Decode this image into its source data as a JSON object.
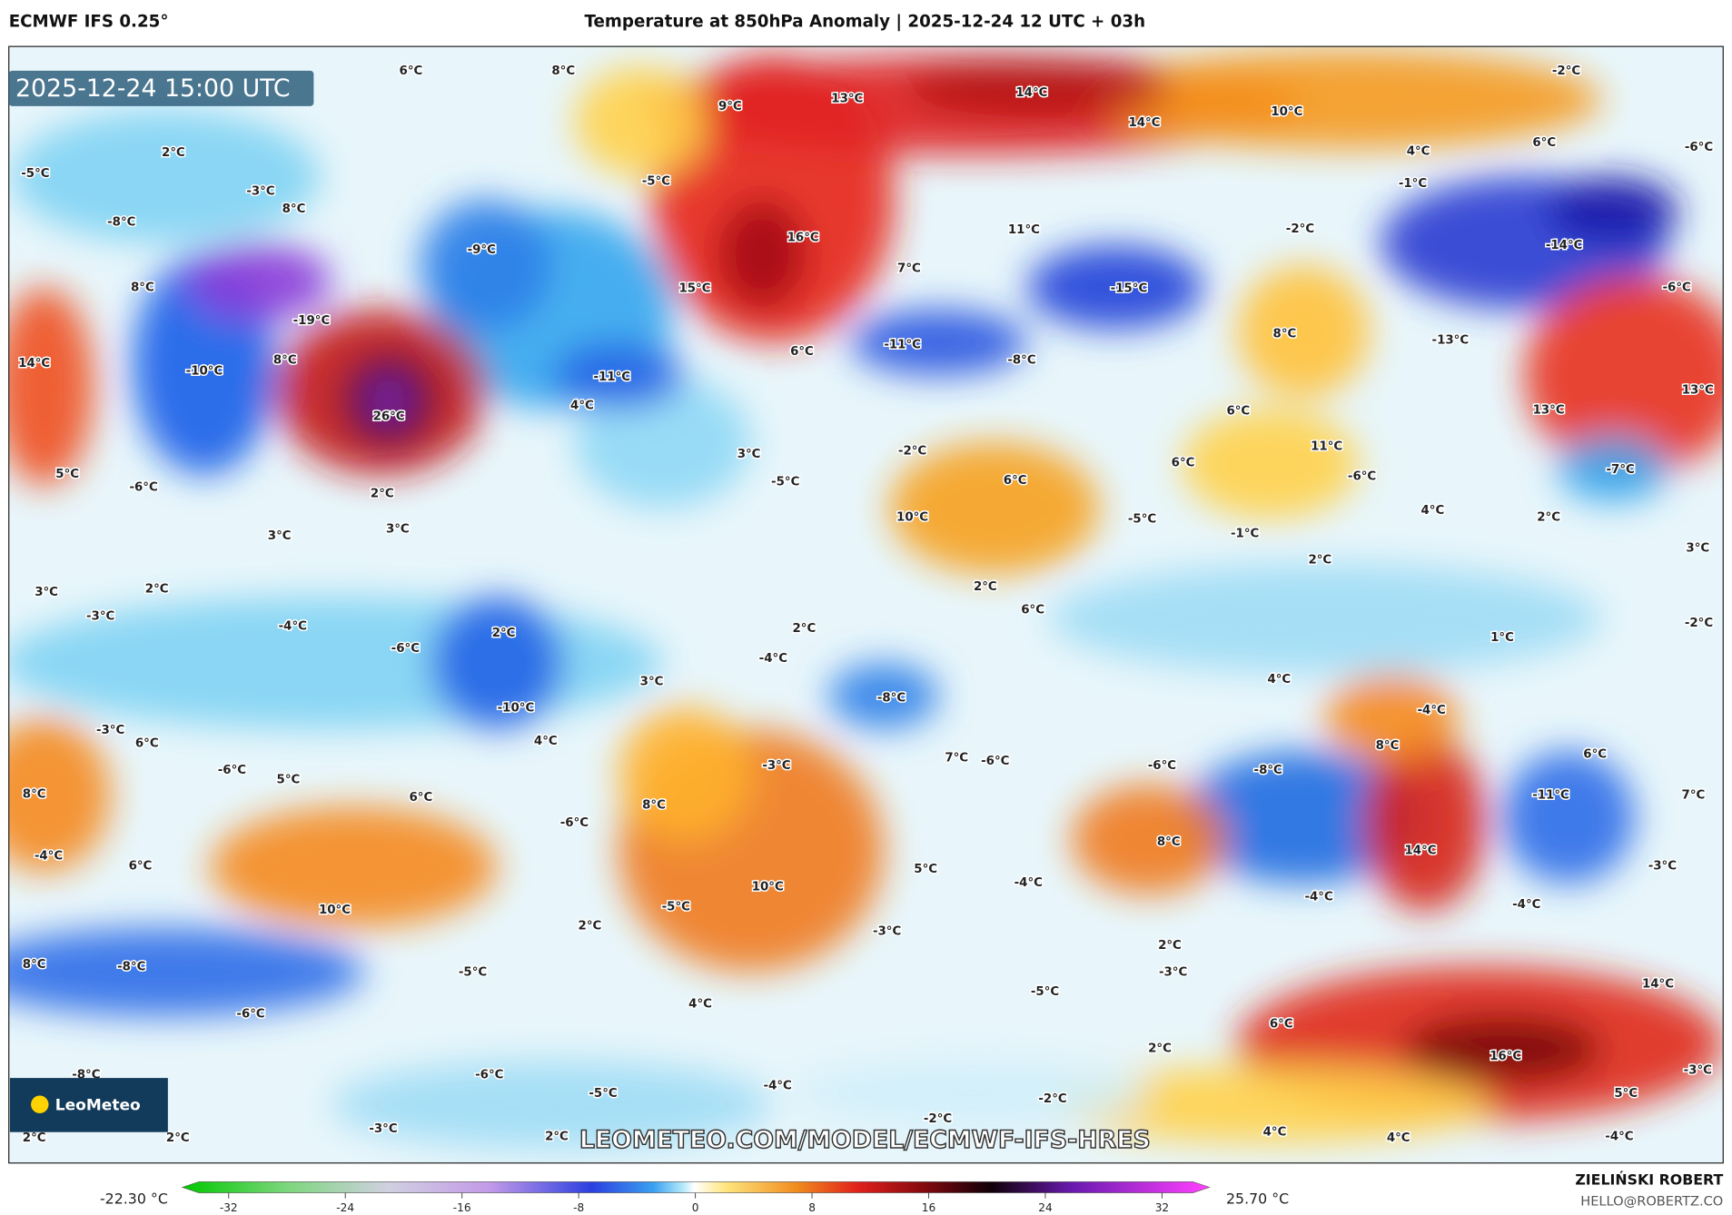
{
  "header": {
    "model": "ECMWF IFS 0.25°",
    "title": "Temperature at 850hPa Anomaly | 2025-12-24 12 UTC + 03h"
  },
  "map": {
    "timestamp": "2025-12-24 15:00 UTC",
    "logo": "LeoMeteo",
    "watermark": "LEOMETEO.COM/MODEL/ECMWF-IFS-HRES",
    "labels": [
      "6°C",
      "8°C",
      "-2°C",
      "9°C",
      "13°C",
      "14°C",
      "10°C",
      "14°C",
      "2°C",
      "-5°C",
      "-5°C",
      "4°C",
      "6°C",
      "-6°C",
      "-1°C",
      "-3°C",
      "8°C",
      "-8°C",
      "-2°C",
      "16°C",
      "11°C",
      "-9°C",
      "-14°C",
      "7°C",
      "15°C",
      "-15°C",
      "8°C",
      "-6°C",
      "-19°C",
      "8°C",
      "-13°C",
      "8°C",
      "14°C",
      "-10°C",
      "6°C",
      "-11°C",
      "-8°C",
      "-11°C",
      "13°C",
      "26°C",
      "4°C",
      "6°C",
      "13°C",
      "11°C",
      "3°C",
      "-2°C",
      "6°C",
      "-7°C",
      "5°C",
      "-6°C",
      "-5°C",
      "6°C",
      "-6°C",
      "2°C",
      "-5°C",
      "4°C",
      "2°C",
      "10°C",
      "3°C",
      "3°C",
      "-1°C",
      "3°C",
      "2°C",
      "3°C",
      "2°C",
      "2°C",
      "-3°C",
      "6°C",
      "-4°C",
      "2°C",
      "2°C",
      "-2°C",
      "-6°C",
      "1°C",
      "-4°C",
      "3°C",
      "4°C",
      "-8°C",
      "-10°C",
      "-4°C",
      "-3°C",
      "6°C",
      "4°C",
      "8°C",
      "6°C",
      "7°C",
      "-6°C",
      "-6°C",
      "-3°C",
      "-6°C",
      "-8°C",
      "5°C",
      "8°C",
      "6°C",
      "8°C",
      "7°C",
      "-11°C",
      "-6°C",
      "8°C",
      "14°C",
      "-4°C",
      "6°C",
      "5°C",
      "-3°C",
      "10°C",
      "-4°C",
      "-4°C",
      "-4°C",
      "10°C",
      "-5°C",
      "2°C",
      "-3°C",
      "2°C",
      "-3°C",
      "8°C",
      "-8°C",
      "-5°C",
      "14°C",
      "-5°C",
      "4°C",
      "-6°C",
      "6°C",
      "2°C",
      "16°C",
      "-8°C",
      "-6°C",
      "-4°C",
      "-5°C",
      "-3°C",
      "5°C",
      "-2°C",
      "-2°C",
      "-4°C",
      "-3°C",
      "2°C",
      "2°C",
      "2°C",
      "4°C",
      "4°C"
    ]
  },
  "colorbar": {
    "min_label": "-22.30 °C",
    "max_label": "25.70 °C",
    "clim": [
      -32,
      32
    ],
    "ticks": [
      -32,
      -24,
      -16,
      -8,
      0,
      8,
      16,
      24,
      32
    ]
  },
  "footer": {
    "author": "ZIELIŃSKI ROBERT",
    "email": "HELLO@ROBERTZ.CO"
  }
}
